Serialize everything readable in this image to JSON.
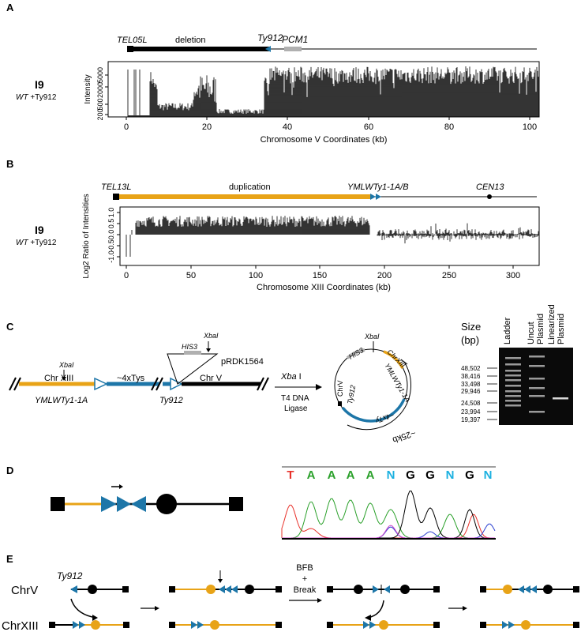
{
  "panels": {
    "A": {
      "letter": "A",
      "sample": "I9",
      "strain_wt": "WT",
      "strain_suffix": " +Ty912",
      "map": {
        "tel": "TEL05L",
        "region": "deletion",
        "ty": "Ty912",
        "gene": "PCM1"
      },
      "ylabel": "Intensity",
      "yticks": [
        "5000",
        "2000",
        "500",
        "200"
      ],
      "xticks": [
        "0",
        "20",
        "40",
        "60",
        "80",
        "100"
      ],
      "xlabel": "Chromosome V Coordinates (kb)"
    },
    "B": {
      "letter": "B",
      "sample": "I9",
      "strain_wt": "WT",
      "strain_suffix": " +Ty912",
      "map": {
        "tel": "TEL13L",
        "region": "duplication",
        "ty": "YMLWTy1-1A/B",
        "cen": "CEN13"
      },
      "ylabel": "Log2 Ratio of Intensities",
      "yticks": [
        "1.0",
        "0.5",
        "0.0",
        "-0.5",
        "-1.0"
      ],
      "xticks": [
        "0",
        "50",
        "100",
        "150",
        "200",
        "250",
        "300"
      ],
      "xlabel": "Chromosome XIII Coordinates (kb)"
    },
    "C": {
      "letter": "C",
      "linear": {
        "chr13": "Chr XIII",
        "xba": "XbaI",
        "tys": "~4xTys",
        "chr5": "Chr V",
        "his3": "HIS3",
        "xba2": "XbaI",
        "plasmid": "pRDK1564",
        "ymlw": "YMLWTy1-1A",
        "ty912": "Ty912"
      },
      "arrow": {
        "enzyme": "Xba",
        "enzyme_suffix": " I",
        "ligase_line1": "T4 DNA",
        "ligase_line2": "Ligase"
      },
      "circle": {
        "xba": "XbaI",
        "his3": "HIS3",
        "chrxiii": "ChrXIII",
        "ymlw": "YMLWTy1-1A",
        "chrv": "ChrV",
        "ty912": "Ty912",
        "tys": "~4xTy",
        "size": "~25kb"
      },
      "gel": {
        "size_label": "Size",
        "size_unit": "(bp)",
        "lanes": [
          "Ladder",
          "Uncut\nPlasmid",
          "Linearized\nPlasmid"
        ],
        "ladder": [
          "48,502",
          "38,416",
          "33,498",
          "29,946",
          "24,508",
          "23,994",
          "19,397"
        ]
      }
    },
    "D": {
      "letter": "D",
      "bases": [
        "T",
        "A",
        "A",
        "A",
        "A",
        "N",
        "G",
        "G",
        "N",
        "G",
        "N"
      ],
      "base_colors": {
        "T": "#e8312a",
        "A": "#2aa02a",
        "G": "#000000",
        "C": "#2a3fd0",
        "N": "#1ab0e0"
      }
    },
    "E": {
      "letter": "E",
      "chrv": "ChrV",
      "chrxiii": "ChrXIII",
      "ty912": "Ty912",
      "bfb1": "BFB",
      "bfb2": "+",
      "bfb3": "Break"
    }
  },
  "colors": {
    "orange": "#e8a317",
    "blue": "#1d76a8",
    "grey": "#b0b0b0"
  }
}
